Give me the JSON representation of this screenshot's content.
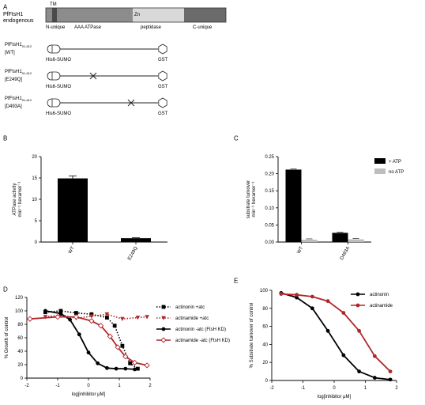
{
  "panels": {
    "A": "A",
    "B": "B",
    "C": "C",
    "D": "D",
    "E": "E"
  },
  "panel_a": {
    "endogenous_label": [
      "PfFtsH1",
      "endogenous"
    ],
    "domains": {
      "tm": "TM",
      "zn": "Zn",
      "n_unique": "N-unique",
      "aaa": "AAA ATPase",
      "peptidase": "peptidase",
      "c_unique": "C-unique"
    },
    "constructs": [
      {
        "line1": "PfFtsH1",
        "sub": "91-612",
        "line2": "[WT]",
        "n_tag": "His6-SUMO",
        "c_tag": "GST",
        "mutation_mark": false
      },
      {
        "line1": "PfFtsH1",
        "sub": "91-612",
        "line2": "[E249Q]",
        "n_tag": "His6-SUMO",
        "c_tag": "GST",
        "mutation_mark": true
      },
      {
        "line1": "PfFtsH1",
        "sub": "91-612",
        "line2": "[D493A]",
        "n_tag": "His6-SUMO",
        "c_tag": "GST",
        "mutation_mark": true
      }
    ]
  },
  "colors": {
    "black": "#000000",
    "red": "#b0262a",
    "gray": "#bdbdbd",
    "domain_dark": "#6b6b6b",
    "domain_mid": "#8c8c8c",
    "domain_light": "#d9d9d9"
  },
  "chart_data": [
    {
      "id": "B",
      "type": "bar",
      "categories": [
        "WT",
        "E249Q"
      ],
      "values": [
        14.9,
        0.9
      ],
      "errors": [
        0.6,
        0.1
      ],
      "ylabel": [
        "ATPase activity",
        "min⁻¹ hexamer⁻¹"
      ],
      "ylim": [
        0,
        20
      ],
      "yticks": [
        0,
        5,
        10,
        15,
        20
      ],
      "grid": false
    },
    {
      "id": "C",
      "type": "bar",
      "categories": [
        "WT",
        "D493A"
      ],
      "series": [
        {
          "name": "+ ATP",
          "values": [
            0.212,
            0.027
          ],
          "color": "#000000"
        },
        {
          "name": "no ATP",
          "values": [
            0.007,
            0.008
          ],
          "color": "#bdbdbd"
        }
      ],
      "ylabel": [
        "substrate turnover",
        "min⁻¹ hexamer⁻¹"
      ],
      "ylim": [
        0,
        0.25
      ],
      "yticks": [
        "0.00",
        "0.05",
        "0.10",
        "0.15",
        "0.20",
        "0.25"
      ],
      "legend": "top-right",
      "grid": false
    },
    {
      "id": "D",
      "type": "scatter",
      "xlabel": "log[inhibitor μM]",
      "ylabel": "% Growth of control",
      "xlim": [
        -2,
        2
      ],
      "ylim": [
        0,
        120
      ],
      "xticks": [
        -2,
        -1,
        0,
        1,
        2
      ],
      "yticks": [
        0,
        20,
        40,
        60,
        80,
        100,
        120
      ],
      "legend": "right",
      "grid": false,
      "series": [
        {
          "name": "actinonin +atc",
          "color": "#000000",
          "marker": "square",
          "dash": "dotted",
          "x": [
            -1.4,
            -0.9,
            -0.4,
            0.1,
            0.6,
            0.85,
            1.1,
            1.35,
            1.6
          ],
          "y": [
            98,
            100,
            97,
            95,
            90,
            78,
            48,
            22,
            14
          ]
        },
        {
          "name": "actinamide +atc",
          "color": "#b0262a",
          "marker": "triangle-down",
          "dash": "dotted",
          "x": [
            -1.4,
            -0.9,
            -0.4,
            0.1,
            0.6,
            1.1,
            1.6,
            1.9
          ],
          "y": [
            91,
            94,
            89,
            92,
            95,
            88,
            90,
            91
          ]
        },
        {
          "name": "actinonin -atc (FtsH KD)",
          "color": "#000000",
          "marker": "circle",
          "dash": "solid",
          "x": [
            -1.4,
            -0.9,
            -0.6,
            -0.3,
            0.0,
            0.3,
            0.6,
            0.9,
            1.2,
            1.5
          ],
          "y": [
            100,
            96,
            87,
            65,
            38,
            22,
            15,
            14,
            14,
            13
          ]
        },
        {
          "name": "actinamide -atc (FtsH KD)",
          "color": "#b0262a",
          "marker": "diamond",
          "dash": "solid",
          "x": [
            -1.9,
            -1.0,
            -0.4,
            0.1,
            0.4,
            0.7,
            0.95,
            1.2,
            1.5,
            1.9
          ],
          "y": [
            88,
            91,
            91,
            85,
            78,
            62,
            46,
            32,
            23,
            19
          ]
        }
      ]
    },
    {
      "id": "E",
      "type": "scatter",
      "xlabel": "log[inhibitor μM]",
      "ylabel": "% Substrate turnover of control",
      "xlim": [
        -2,
        2
      ],
      "ylim": [
        0,
        100
      ],
      "xticks": [
        -2,
        -1,
        0,
        1,
        2
      ],
      "yticks": [
        0,
        20,
        40,
        60,
        80,
        100
      ],
      "legend": "top-right",
      "grid": false,
      "series": [
        {
          "name": "actinonin",
          "color": "#000000",
          "marker": "circle",
          "x": [
            -1.7,
            -1.2,
            -0.7,
            -0.2,
            0.3,
            0.8,
            1.3,
            1.8
          ],
          "y": [
            97,
            92,
            80,
            55,
            28,
            10,
            3,
            1
          ]
        },
        {
          "name": "actinamide",
          "color": "#b0262a",
          "marker": "circle",
          "x": [
            -1.7,
            -1.2,
            -0.7,
            -0.2,
            0.3,
            0.8,
            1.3,
            1.8
          ],
          "y": [
            96,
            95,
            93,
            88,
            75,
            55,
            27,
            10
          ]
        }
      ]
    }
  ]
}
